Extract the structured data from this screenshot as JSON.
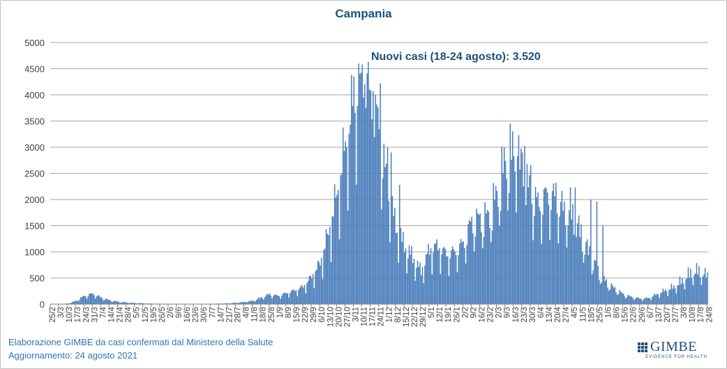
{
  "chart_data": {
    "type": "bar",
    "title": "Campania",
    "annotation": "Nuovi casi (18-24 agosto): 3.520",
    "ylim": [
      0,
      5000
    ],
    "yticks": [
      0,
      500,
      1000,
      1500,
      2000,
      2500,
      3000,
      3500,
      4000,
      4500,
      5000
    ],
    "grid": true,
    "color": "#4f81bd",
    "x_tick_labels": [
      "25/2",
      "3/3",
      "10/3",
      "17/3",
      "24/3",
      "31/3",
      "7/4",
      "14/4",
      "21/4",
      "28/4",
      "5/5",
      "12/5",
      "19/5",
      "26/5",
      "2/6",
      "9/6",
      "16/6",
      "23/6",
      "30/6",
      "7/7",
      "14/7",
      "21/7",
      "28/7",
      "4/8",
      "11/8",
      "18/8",
      "25/8",
      "1/9",
      "8/9",
      "15/9",
      "22/9",
      "29/9",
      "6/10",
      "13/10",
      "20/10",
      "27/10",
      "3/11",
      "10/11",
      "17/11",
      "24/11",
      "1/12",
      "8/12",
      "15/12",
      "22/12",
      "29/12",
      "5/1",
      "12/1",
      "19/1",
      "26/1",
      "2/2",
      "9/2",
      "16/2",
      "23/2",
      "2/3",
      "9/3",
      "16/3",
      "23/3",
      "30/3",
      "6/4",
      "13/4",
      "20/4",
      "27/4",
      "4/5",
      "11/5",
      "18/5",
      "25/5",
      "1/6",
      "8/6",
      "15/6",
      "22/6",
      "29/6",
      "6/7",
      "13/7",
      "20/7",
      "27/7",
      "3/8",
      "10/8",
      "17/8",
      "24/8"
    ],
    "weekly_anchors": [
      0,
      2,
      10,
      60,
      150,
      190,
      120,
      70,
      45,
      30,
      20,
      15,
      10,
      8,
      6,
      5,
      5,
      5,
      6,
      8,
      10,
      15,
      25,
      40,
      60,
      120,
      180,
      150,
      200,
      250,
      320,
      500,
      750,
      1300,
      2000,
      2900,
      3700,
      4200,
      3800,
      3200,
      2100,
      1400,
      1050,
      850,
      600,
      1000,
      1050,
      900,
      950,
      1100,
      1500,
      1550,
      1600,
      2000,
      2600,
      2750,
      2400,
      2000,
      1800,
      2000,
      1900,
      1700,
      1600,
      1250,
      900,
      600,
      400,
      280,
      180,
      130,
      100,
      110,
      180,
      250,
      310,
      420,
      560,
      600,
      505
    ],
    "highlight_days": [
      [
        256,
        4600
      ],
      [
        252,
        4350
      ],
      [
        257,
        4400
      ],
      [
        261,
        4200
      ],
      [
        265,
        4100
      ],
      [
        268,
        4070
      ],
      [
        274,
        4220
      ],
      [
        280,
        3000
      ],
      [
        283,
        2900
      ],
      [
        290,
        2280
      ],
      [
        394,
        3020
      ],
      [
        392,
        2900
      ],
      [
        388,
        2830
      ],
      [
        399,
        2660
      ],
      [
        420,
        2320
      ],
      [
        432,
        2230
      ],
      [
        436,
        2230
      ],
      [
        449,
        2000
      ],
      [
        454,
        1960
      ],
      [
        459,
        1500
      ]
    ],
    "footer_line1": "Elaborazione GIMBE da casi confermati dal Ministero della Salute",
    "footer_line2": "Aggiornamento: 24 agosto 2021",
    "logo_text": "GIMBE",
    "logo_tagline": "EVIDENCE FOR HEALTH"
  }
}
